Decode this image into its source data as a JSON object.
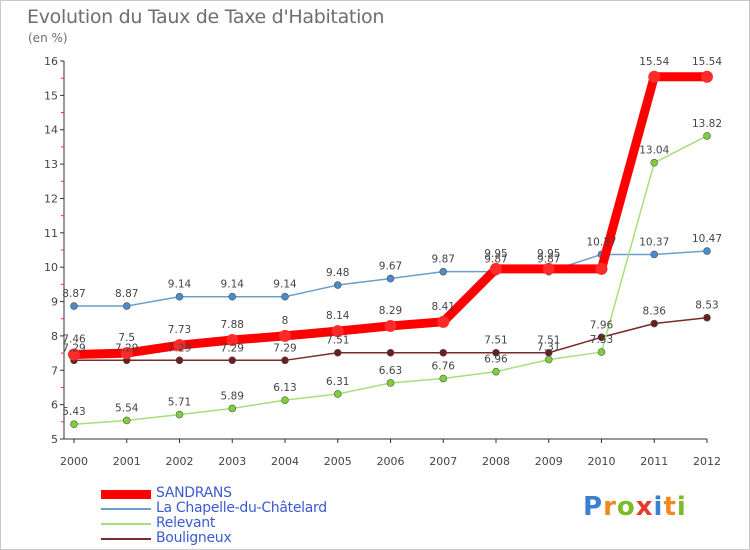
{
  "title": "Evolution du Taux de Taxe d'Habitation",
  "unit": "(en %)",
  "logo": {
    "text": "Proxiti",
    "letters": [
      {
        "ch": "P",
        "color": "#3a7fd0"
      },
      {
        "ch": "r",
        "color": "#f08a1c"
      },
      {
        "ch": "o",
        "color": "#7dbb2a"
      },
      {
        "ch": "x",
        "color": "#e83c2a"
      },
      {
        "ch": "i",
        "color": "#3a7fd0"
      },
      {
        "ch": "t",
        "color": "#f08a1c"
      },
      {
        "ch": "i",
        "color": "#7dbb2a"
      }
    ]
  },
  "chart_data": {
    "type": "line",
    "x": [
      2000,
      2001,
      2002,
      2003,
      2004,
      2005,
      2006,
      2007,
      2008,
      2009,
      2010,
      2011,
      2012
    ],
    "ylim": [
      5,
      16
    ],
    "yticks": [
      5,
      6,
      7,
      8,
      9,
      10,
      11,
      12,
      13,
      14,
      15,
      16
    ],
    "grid": false,
    "legend_position": "bottom-left",
    "series": [
      {
        "name": "SANDRANS",
        "color": "#ff0000",
        "marker": "#ff2b2b",
        "width": 9,
        "radius": 6,
        "values": [
          7.46,
          7.5,
          7.73,
          7.88,
          8,
          8.14,
          8.29,
          8.41,
          9.95,
          9.95,
          9.95,
          15.54,
          15.54
        ],
        "labels": [
          "7.46",
          "7.5",
          "7.73",
          "7.88",
          "8",
          "8.14",
          "8.29",
          "8.41",
          "9.95",
          "9.95",
          "",
          "15.54",
          "15.54"
        ]
      },
      {
        "name": "La Chapelle-du-Châtelard",
        "color": "#6b9ec8",
        "marker": "#4a8cc8",
        "width": 1.5,
        "radius": 3.5,
        "values": [
          8.87,
          8.87,
          9.14,
          9.14,
          9.14,
          9.48,
          9.67,
          9.87,
          9.87,
          9.87,
          10.37,
          10.37,
          10.47
        ],
        "labels": [
          "8.87",
          "8.87",
          "9.14",
          "9.14",
          "9.14",
          "9.48",
          "9.67",
          "9.87",
          "9.87",
          "9.87",
          "10.37",
          "10.37",
          "10.47"
        ]
      },
      {
        "name": "Relevant",
        "color": "#a6e07a",
        "marker": "#7fcf3c",
        "width": 1.5,
        "radius": 3.5,
        "values": [
          5.43,
          5.54,
          5.71,
          5.89,
          6.13,
          6.31,
          6.63,
          6.76,
          6.96,
          7.31,
          7.53,
          13.04,
          13.82
        ],
        "labels": [
          "5.43",
          "5.54",
          "5.71",
          "5.89",
          "6.13",
          "6.31",
          "6.63",
          "6.76",
          "6.96",
          "7.31",
          "7.53",
          "13.04",
          "13.82"
        ]
      },
      {
        "name": "Bouligneux",
        "color": "#7a2a2a",
        "marker": "#6a1f1f",
        "width": 1.5,
        "radius": 3.5,
        "values": [
          7.29,
          7.29,
          7.29,
          7.29,
          7.29,
          7.51,
          7.51,
          7.51,
          7.51,
          7.51,
          7.96,
          8.36,
          8.53
        ],
        "labels": [
          "7.29",
          "7.29",
          "7.29",
          "7.29",
          "7.29",
          "7.51",
          "",
          "",
          "7.51",
          "7.51",
          "7.96",
          "8.36",
          "8.53"
        ]
      }
    ]
  }
}
